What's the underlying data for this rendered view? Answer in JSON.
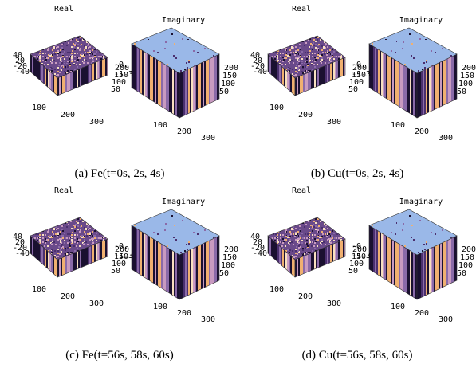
{
  "panels": [
    {
      "caption": "(a) Fe(t=0s, 2s, 4s)",
      "plots": [
        {
          "title": "Real",
          "zticks": [
            "40",
            "20",
            "-20",
            "-40"
          ],
          "yticks": [
            "200",
            "150",
            "100",
            "50"
          ],
          "xticks": [
            "100",
            "200",
            "300"
          ]
        },
        {
          "title": "Imaginary",
          "zticks": [
            "-0.",
            "-1.3"
          ],
          "yticks": [
            "200",
            "150",
            "100",
            "50"
          ],
          "xticks": [
            "100",
            "200",
            "300"
          ]
        }
      ]
    },
    {
      "caption": "(b) Cu(t=0s, 2s, 4s)",
      "plots": [
        {
          "title": "Real",
          "zticks": [
            "40",
            "20",
            "-20",
            "-40"
          ],
          "yticks": [
            "200",
            "150",
            "100",
            "50"
          ],
          "xticks": [
            "100",
            "200",
            "300"
          ]
        },
        {
          "title": "Imaginary",
          "zticks": [
            "-0.",
            "-1.3"
          ],
          "yticks": [
            "200",
            "150",
            "100",
            "50"
          ],
          "xticks": [
            "100",
            "200",
            "300"
          ]
        }
      ]
    },
    {
      "caption": "(c) Fe(t=56s, 58s, 60s)",
      "plots": [
        {
          "title": "Real",
          "zticks": [
            "40",
            "20",
            "-20",
            "-40"
          ],
          "yticks": [
            "200",
            "150",
            "100",
            "50"
          ],
          "xticks": [
            "100",
            "200",
            "300"
          ]
        },
        {
          "title": "Imaginary",
          "zticks": [
            "-0.",
            "-1.3"
          ],
          "yticks": [
            "200",
            "150",
            "100",
            "50"
          ],
          "xticks": [
            "100",
            "200",
            "300"
          ]
        }
      ]
    },
    {
      "caption": "(d) Cu(t=56s, 58s, 60s)",
      "plots": [
        {
          "title": "Real",
          "zticks": [
            "40",
            "20",
            "-20",
            "-40"
          ],
          "yticks": [
            "200",
            "150",
            "100",
            "50"
          ],
          "xticks": [
            "100",
            "200",
            "300"
          ]
        },
        {
          "title": "Imaginary",
          "zticks": [
            "-0.",
            "-1.3"
          ],
          "yticks": [
            "200",
            "150",
            "100",
            "50"
          ],
          "xticks": [
            "100",
            "200",
            "300"
          ]
        }
      ]
    }
  ]
}
